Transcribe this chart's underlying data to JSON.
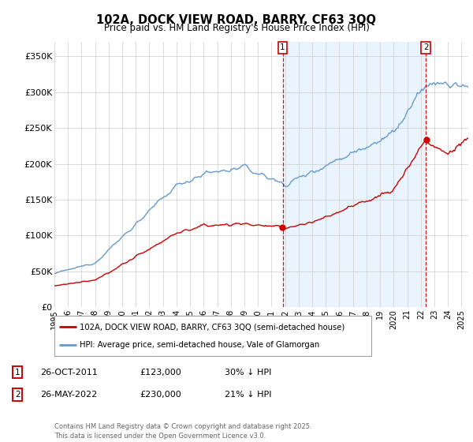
{
  "title": "102A, DOCK VIEW ROAD, BARRY, CF63 3QQ",
  "subtitle": "Price paid vs. HM Land Registry's House Price Index (HPI)",
  "hpi_color": "#6699cc",
  "hpi_fill_color": "#ddeeff",
  "price_color": "#cc0000",
  "legend_line1": "102A, DOCK VIEW ROAD, BARRY, CF63 3QQ (semi-detached house)",
  "legend_line2": "HPI: Average price, semi-detached house, Vale of Glamorgan",
  "table_row1": [
    "1",
    "26-OCT-2011",
    "£123,000",
    "30% ↓ HPI"
  ],
  "table_row2": [
    "2",
    "26-MAY-2022",
    "£230,000",
    "21% ↓ HPI"
  ],
  "footer": "Contains HM Land Registry data © Crown copyright and database right 2025.\nThis data is licensed under the Open Government Licence v3.0.",
  "background_color": "#ffffff",
  "grid_color": "#cccccc",
  "yticks": [
    0,
    50000,
    100000,
    150000,
    200000,
    250000,
    300000,
    350000
  ],
  "ytick_labels": [
    "£0",
    "£50K",
    "£100K",
    "£150K",
    "£200K",
    "£250K",
    "£300K",
    "£350K"
  ],
  "ylim": [
    0,
    370000
  ],
  "xlim_start": 1995,
  "xlim_end": 2025.5,
  "marker1_x": 2011.82,
  "marker2_x": 2022.38,
  "marker1_y": 123000,
  "marker2_y": 230000,
  "xtick_start": 1995,
  "xtick_end": 2026
}
